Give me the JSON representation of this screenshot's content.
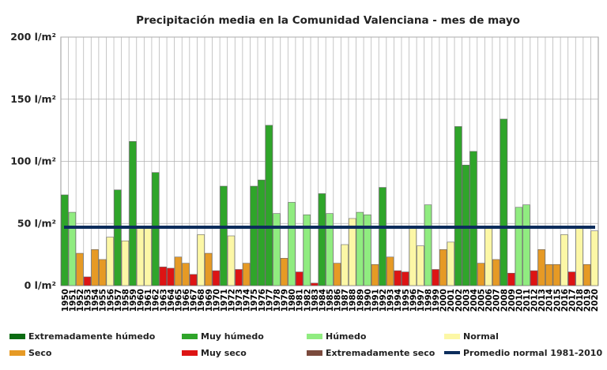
{
  "chart_data": {
    "type": "bar",
    "title": "Precipitación media en la Comunidad Valenciana - mes de mayo",
    "ylim": [
      0,
      200
    ],
    "yticks": [
      {
        "value": 0,
        "label": "0 l/m²"
      },
      {
        "value": 50,
        "label": "50 l/m²"
      },
      {
        "value": 100,
        "label": "100 l/m²"
      },
      {
        "value": 150,
        "label": "150 l/m²"
      },
      {
        "value": 200,
        "label": "200 l/m²"
      }
    ],
    "grid": true,
    "legend_position": "bottom",
    "colors": {
      "extremadamente_humedo": "#0b6b12",
      "muy_humedo": "#2fa52a",
      "humedo": "#90ec80",
      "normal": "#fcf7a6",
      "seco": "#e69a25",
      "muy_seco": "#dd1414",
      "extremadamente_seco": "#7a4a3c",
      "promedio": "#0c2d5c"
    },
    "categories": [
      "1950",
      "1951",
      "1952",
      "1953",
      "1954",
      "1955",
      "1956",
      "1957",
      "1958",
      "1959",
      "1960",
      "1961",
      "1962",
      "1963",
      "1964",
      "1965",
      "1966",
      "1967",
      "1968",
      "1969",
      "1970",
      "1971",
      "1972",
      "1973",
      "1974",
      "1975",
      "1976",
      "1977",
      "1978",
      "1979",
      "1980",
      "1981",
      "1982",
      "1983",
      "1984",
      "1985",
      "1986",
      "1987",
      "1988",
      "1989",
      "1990",
      "1991",
      "1992",
      "1993",
      "1994",
      "1995",
      "1996",
      "1997",
      "1998",
      "1999",
      "2000",
      "2001",
      "2002",
      "2003",
      "2004",
      "2005",
      "2006",
      "2007",
      "2008",
      "2009",
      "2010",
      "2011",
      "2012",
      "2013",
      "2014",
      "2015",
      "2016",
      "2017",
      "2018",
      "2019",
      "2020"
    ],
    "values": [
      73,
      59,
      26,
      7,
      29,
      21,
      39,
      77,
      36,
      116,
      46,
      46,
      91,
      15,
      14,
      23,
      18,
      9,
      41,
      26,
      12,
      80,
      40,
      13,
      18,
      80,
      85,
      129,
      58,
      22,
      67,
      11,
      57,
      2,
      74,
      58,
      18,
      33,
      54,
      59,
      57,
      17,
      79,
      23,
      12,
      11,
      47,
      32,
      65,
      13,
      29,
      35,
      128,
      97,
      108,
      18,
      46,
      21,
      134,
      10,
      63,
      65,
      12,
      29,
      17,
      17,
      41,
      11,
      47,
      17,
      44
    ],
    "classes": [
      "muy_humedo",
      "humedo",
      "seco",
      "muy_seco",
      "seco",
      "seco",
      "normal",
      "muy_humedo",
      "normal",
      "muy_humedo",
      "normal",
      "normal",
      "muy_humedo",
      "muy_seco",
      "muy_seco",
      "seco",
      "seco",
      "muy_seco",
      "normal",
      "seco",
      "muy_seco",
      "muy_humedo",
      "normal",
      "muy_seco",
      "seco",
      "muy_humedo",
      "muy_humedo",
      "muy_humedo",
      "humedo",
      "seco",
      "humedo",
      "muy_seco",
      "humedo",
      "muy_seco",
      "muy_humedo",
      "humedo",
      "seco",
      "normal",
      "normal",
      "humedo",
      "humedo",
      "seco",
      "muy_humedo",
      "seco",
      "muy_seco",
      "muy_seco",
      "normal",
      "normal",
      "humedo",
      "muy_seco",
      "seco",
      "normal",
      "muy_humedo",
      "muy_humedo",
      "muy_humedo",
      "seco",
      "normal",
      "seco",
      "muy_humedo",
      "muy_seco",
      "humedo",
      "humedo",
      "muy_seco",
      "seco",
      "seco",
      "seco",
      "normal",
      "muy_seco",
      "normal",
      "seco",
      "normal"
    ],
    "reference_line": {
      "value": 47,
      "label": "Promedio normal 1981-2010"
    },
    "legend": [
      {
        "key": "extremadamente_humedo",
        "label": "Extremadamente húmedo",
        "kind": "box"
      },
      {
        "key": "muy_humedo",
        "label": "Muy húmedo",
        "kind": "box"
      },
      {
        "key": "humedo",
        "label": "Húmedo",
        "kind": "box"
      },
      {
        "key": "normal",
        "label": "Normal",
        "kind": "box"
      },
      {
        "key": "seco",
        "label": "Seco",
        "kind": "box"
      },
      {
        "key": "muy_seco",
        "label": "Muy seco",
        "kind": "box"
      },
      {
        "key": "extremadamente_seco",
        "label": "Extremadamente seco",
        "kind": "box"
      },
      {
        "key": "promedio",
        "label": "Promedio normal 1981-2010",
        "kind": "line"
      }
    ]
  }
}
